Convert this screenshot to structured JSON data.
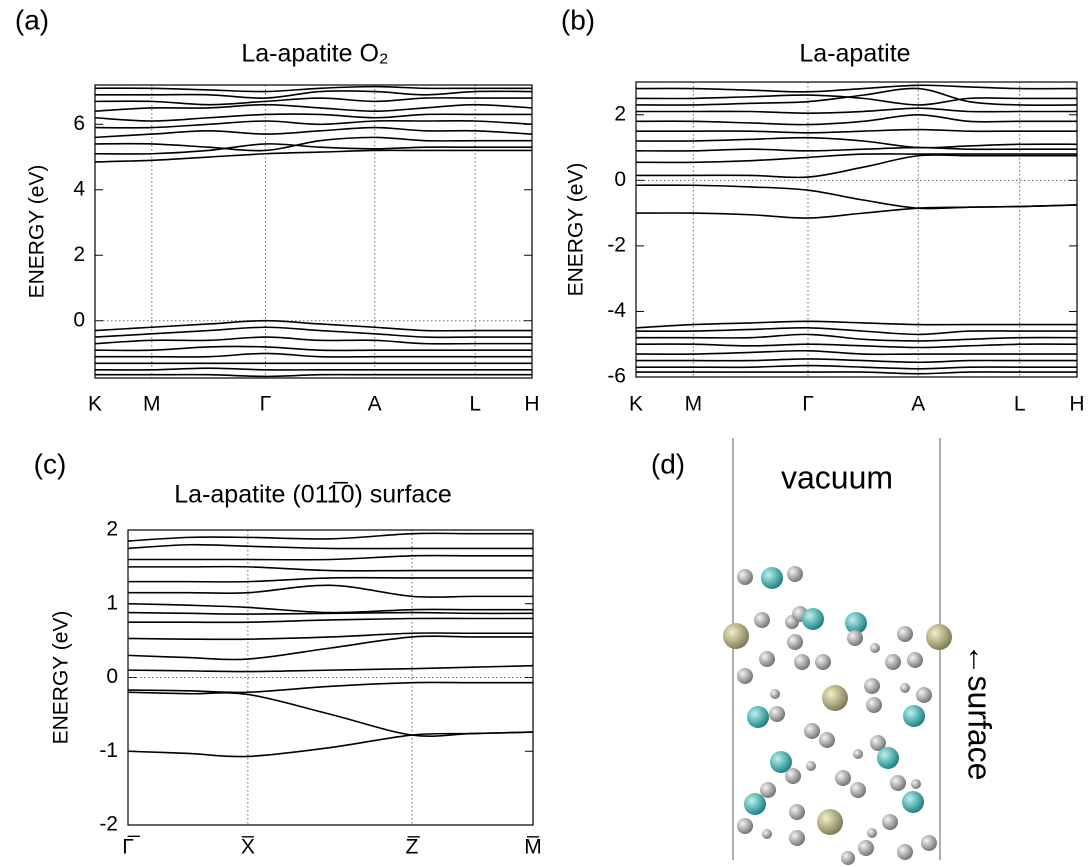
{
  "chart_data": [
    {
      "type": "line",
      "panel_label": "(a)",
      "title": "La-apatite O₂",
      "ylabel": "ENERGY (eV)",
      "color": "#000000",
      "grid": true,
      "hline": 0,
      "xlim": [
        0,
        1
      ],
      "xticks": [
        {
          "value": 0,
          "label": "K"
        },
        {
          "value": 0.13,
          "label": "M"
        },
        {
          "value": 0.39,
          "label": "Γ"
        },
        {
          "value": 0.64,
          "label": "A"
        },
        {
          "value": 0.87,
          "label": "L"
        },
        {
          "value": 1,
          "label": "H"
        }
      ],
      "ylim": [
        -1.75,
        7.2
      ],
      "yticks": [
        0,
        2,
        4,
        6
      ],
      "x": [
        0,
        0.13,
        0.26,
        0.39,
        0.515,
        0.64,
        0.755,
        0.87,
        1
      ],
      "series": [
        {
          "values": [
            4.85,
            4.9,
            5.0,
            5.1,
            5.15,
            5.2,
            5.2,
            5.2,
            5.2
          ]
        },
        {
          "values": [
            5.1,
            5.1,
            5.2,
            5.4,
            5.3,
            5.25,
            5.3,
            5.3,
            5.3
          ]
        },
        {
          "values": [
            5.4,
            5.4,
            5.3,
            5.2,
            5.5,
            5.6,
            5.5,
            5.5,
            5.5
          ]
        },
        {
          "values": [
            5.6,
            5.7,
            5.8,
            5.7,
            5.8,
            5.9,
            5.8,
            5.8,
            5.7
          ]
        },
        {
          "values": [
            5.9,
            5.9,
            6.0,
            6.1,
            6.0,
            6.1,
            6.1,
            6.1,
            6.0
          ]
        },
        {
          "values": [
            6.2,
            6.1,
            6.2,
            6.3,
            6.3,
            6.2,
            6.3,
            6.3,
            6.3
          ]
        },
        {
          "values": [
            6.4,
            6.5,
            6.5,
            6.6,
            6.5,
            6.4,
            6.5,
            6.6,
            6.5
          ]
        },
        {
          "values": [
            6.7,
            6.7,
            6.6,
            6.7,
            6.8,
            6.7,
            6.8,
            6.8,
            6.8
          ]
        },
        {
          "values": [
            6.9,
            6.9,
            6.9,
            6.8,
            7.0,
            7.0,
            6.9,
            7.0,
            7.0
          ]
        },
        {
          "values": [
            7.1,
            7.1,
            7.05,
            7.0,
            7.1,
            7.15,
            7.1,
            7.1,
            7.1
          ]
        },
        {
          "values": [
            -0.3,
            -0.2,
            -0.1,
            0.0,
            -0.1,
            -0.2,
            -0.3,
            -0.3,
            -0.3
          ]
        },
        {
          "values": [
            -0.5,
            -0.4,
            -0.3,
            -0.2,
            -0.3,
            -0.4,
            -0.5,
            -0.5,
            -0.5
          ]
        },
        {
          "values": [
            -0.7,
            -0.6,
            -0.6,
            -0.5,
            -0.6,
            -0.6,
            -0.7,
            -0.7,
            -0.7
          ]
        },
        {
          "values": [
            -0.9,
            -0.9,
            -0.8,
            -0.8,
            -0.9,
            -0.9,
            -0.9,
            -0.9,
            -0.9
          ]
        },
        {
          "values": [
            -1.1,
            -1.1,
            -1.1,
            -1.0,
            -1.1,
            -1.1,
            -1.1,
            -1.1,
            -1.1
          ]
        },
        {
          "values": [
            -1.3,
            -1.3,
            -1.3,
            -1.3,
            -1.3,
            -1.3,
            -1.3,
            -1.3,
            -1.3
          ]
        },
        {
          "values": [
            -1.5,
            -1.5,
            -1.45,
            -1.5,
            -1.5,
            -1.5,
            -1.5,
            -1.5,
            -1.5
          ]
        },
        {
          "values": [
            -1.65,
            -1.65,
            -1.65,
            -1.7,
            -1.65,
            -1.65,
            -1.65,
            -1.65,
            -1.65
          ]
        }
      ]
    },
    {
      "type": "line",
      "panel_label": "(b)",
      "title": "La-apatite",
      "ylabel": "ENERGY (eV)",
      "color": "#000000",
      "grid": true,
      "hline": 0,
      "xlim": [
        0,
        1
      ],
      "xticks": [
        {
          "value": 0,
          "label": "K"
        },
        {
          "value": 0.13,
          "label": "M"
        },
        {
          "value": 0.39,
          "label": "Γ"
        },
        {
          "value": 0.64,
          "label": "A"
        },
        {
          "value": 0.87,
          "label": "L"
        },
        {
          "value": 1,
          "label": "H"
        }
      ],
      "ylim": [
        -6,
        3
      ],
      "yticks": [
        2,
        0,
        -2,
        -4,
        -6
      ],
      "x": [
        0,
        0.13,
        0.26,
        0.39,
        0.515,
        0.64,
        0.755,
        0.87,
        1
      ],
      "series": [
        {
          "values": [
            -1.0,
            -1.0,
            -1.05,
            -1.15,
            -1.0,
            -0.85,
            -0.82,
            -0.8,
            -0.75
          ]
        },
        {
          "values": [
            -0.15,
            -0.15,
            -0.2,
            -0.3,
            -0.6,
            -0.85,
            -0.82,
            -0.8,
            -0.75
          ]
        },
        {
          "values": [
            0.15,
            0.15,
            0.15,
            0.1,
            0.4,
            0.75,
            0.75,
            0.75,
            0.75
          ]
        },
        {
          "values": [
            0.55,
            0.55,
            0.6,
            0.7,
            0.8,
            0.8,
            0.8,
            0.8,
            0.8
          ]
        },
        {
          "values": [
            0.9,
            0.9,
            0.95,
            0.9,
            0.95,
            1.0,
            0.95,
            0.95,
            0.95
          ]
        },
        {
          "values": [
            1.2,
            1.2,
            1.25,
            1.3,
            1.2,
            1.0,
            1.05,
            1.1,
            1.1
          ]
        },
        {
          "values": [
            1.5,
            1.5,
            1.5,
            1.45,
            1.5,
            1.55,
            1.5,
            1.5,
            1.5
          ]
        },
        {
          "values": [
            1.8,
            1.8,
            1.75,
            1.7,
            1.8,
            2.0,
            1.8,
            1.8,
            1.8
          ]
        },
        {
          "values": [
            2.1,
            2.1,
            2.1,
            2.05,
            2.1,
            2.2,
            2.1,
            2.1,
            2.1
          ]
        },
        {
          "values": [
            2.3,
            2.3,
            2.35,
            2.4,
            2.6,
            2.8,
            2.4,
            2.3,
            2.3
          ]
        },
        {
          "values": [
            2.5,
            2.5,
            2.55,
            2.6,
            2.5,
            2.3,
            2.5,
            2.5,
            2.5
          ]
        },
        {
          "values": [
            2.8,
            2.8,
            2.75,
            2.7,
            2.8,
            2.9,
            2.85,
            2.8,
            2.8
          ]
        },
        {
          "values": [
            -4.5,
            -4.4,
            -4.35,
            -4.3,
            -4.35,
            -4.4,
            -4.4,
            -4.4,
            -4.4
          ]
        },
        {
          "values": [
            -4.6,
            -4.6,
            -4.55,
            -4.5,
            -4.6,
            -4.7,
            -4.6,
            -4.6,
            -4.6
          ]
        },
        {
          "values": [
            -4.8,
            -4.8,
            -4.8,
            -4.7,
            -4.85,
            -4.9,
            -4.85,
            -4.8,
            -4.8
          ]
        },
        {
          "values": [
            -5.0,
            -5.0,
            -5.05,
            -5.0,
            -5.05,
            -5.1,
            -5.05,
            -5.0,
            -5.0
          ]
        },
        {
          "values": [
            -5.3,
            -5.3,
            -5.25,
            -5.2,
            -5.3,
            -5.3,
            -5.3,
            -5.3,
            -5.3
          ]
        },
        {
          "values": [
            -5.5,
            -5.5,
            -5.5,
            -5.45,
            -5.5,
            -5.55,
            -5.5,
            -5.5,
            -5.5
          ]
        },
        {
          "values": [
            -5.7,
            -5.7,
            -5.7,
            -5.65,
            -5.7,
            -5.75,
            -5.7,
            -5.7,
            -5.7
          ]
        },
        {
          "values": [
            -5.85,
            -5.85,
            -5.85,
            -5.85,
            -5.85,
            -5.9,
            -5.85,
            -5.85,
            -5.85
          ]
        }
      ]
    },
    {
      "type": "line",
      "panel_label": "(c)",
      "title": "La-apatite (011̅0) surface",
      "ylabel": "ENERGY (eV)",
      "color": "#000000",
      "grid": true,
      "hline": 0,
      "xlim": [
        0,
        1
      ],
      "xticks": [
        {
          "value": 0,
          "label": "Γ̅"
        },
        {
          "value": 0.296,
          "label": "X̅"
        },
        {
          "value": 0.701,
          "label": "Z̅"
        },
        {
          "value": 1,
          "label": "M̅"
        }
      ],
      "ylim": [
        -2,
        2
      ],
      "yticks": [
        2,
        1,
        0,
        -1,
        -2
      ],
      "x": [
        0,
        0.15,
        0.296,
        0.5,
        0.701,
        0.85,
        1
      ],
      "series": [
        {
          "values": [
            -1.0,
            -1.03,
            -1.07,
            -0.95,
            -0.78,
            -0.76,
            -0.74
          ]
        },
        {
          "values": [
            -0.2,
            -0.22,
            -0.23,
            -0.5,
            -0.78,
            -0.76,
            -0.74
          ]
        },
        {
          "values": [
            -0.17,
            -0.18,
            -0.2,
            -0.12,
            -0.07,
            -0.07,
            -0.07
          ]
        },
        {
          "values": [
            0.1,
            0.09,
            0.08,
            0.1,
            0.12,
            0.14,
            0.16
          ]
        },
        {
          "values": [
            0.3,
            0.27,
            0.25,
            0.4,
            0.55,
            0.55,
            0.55
          ]
        },
        {
          "values": [
            0.53,
            0.52,
            0.52,
            0.55,
            0.6,
            0.6,
            0.6
          ]
        },
        {
          "values": [
            0.75,
            0.75,
            0.75,
            0.78,
            0.8,
            0.8,
            0.8
          ]
        },
        {
          "values": [
            0.88,
            0.87,
            0.86,
            0.87,
            0.88,
            0.87,
            0.87
          ]
        },
        {
          "values": [
            1.0,
            0.98,
            0.95,
            0.88,
            0.92,
            0.92,
            0.92
          ]
        },
        {
          "values": [
            1.15,
            1.15,
            1.15,
            1.25,
            1.1,
            1.1,
            1.1
          ]
        },
        {
          "values": [
            1.3,
            1.3,
            1.3,
            1.35,
            1.35,
            1.35,
            1.35
          ]
        },
        {
          "values": [
            1.5,
            1.5,
            1.5,
            1.45,
            1.45,
            1.45,
            1.45
          ]
        },
        {
          "values": [
            1.6,
            1.6,
            1.6,
            1.6,
            1.65,
            1.65,
            1.65
          ]
        },
        {
          "values": [
            1.75,
            1.8,
            1.78,
            1.75,
            1.75,
            1.75,
            1.75
          ]
        },
        {
          "values": [
            1.85,
            1.9,
            1.9,
            1.88,
            1.95,
            1.95,
            1.95
          ]
        }
      ]
    }
  ],
  "panel_d": {
    "panel_label": "(d)",
    "top_text": "vacuum",
    "side_text": "←surface"
  }
}
